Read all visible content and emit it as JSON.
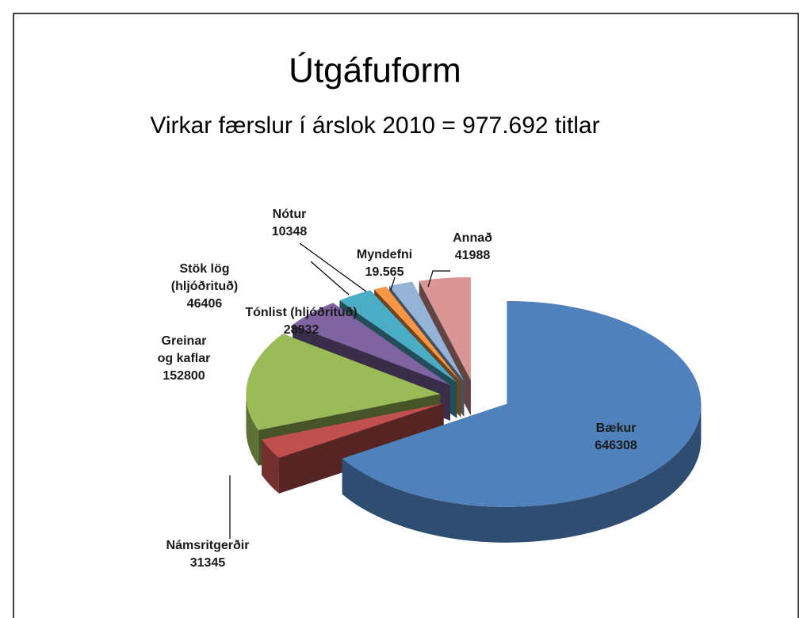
{
  "chart_data": {
    "type": "pie3d",
    "title": "Útgáfuform",
    "subtitle": "Virkar færslur í árslok 2010 = 977.692 titlar",
    "categories": [
      "Bækur",
      "Námsritgerðir",
      "Greinar og kaflar",
      "Stök lög (hljóðrituð)",
      "Tónlist (hljóðrituð)",
      "Nótur",
      "Myndefni",
      "Annað"
    ],
    "values": [
      646308,
      31345,
      152800,
      46406,
      28932,
      10348,
      19565,
      41988
    ],
    "value_labels": [
      "646308",
      "31345",
      "152800",
      "46406",
      "28932",
      "10348",
      "19.565",
      "41988"
    ],
    "colors": [
      "#4f81bd",
      "#c0504d",
      "#9bbb59",
      "#8064a2",
      "#4bacc6",
      "#f79646",
      "#95b3d7",
      "#d99694"
    ]
  }
}
